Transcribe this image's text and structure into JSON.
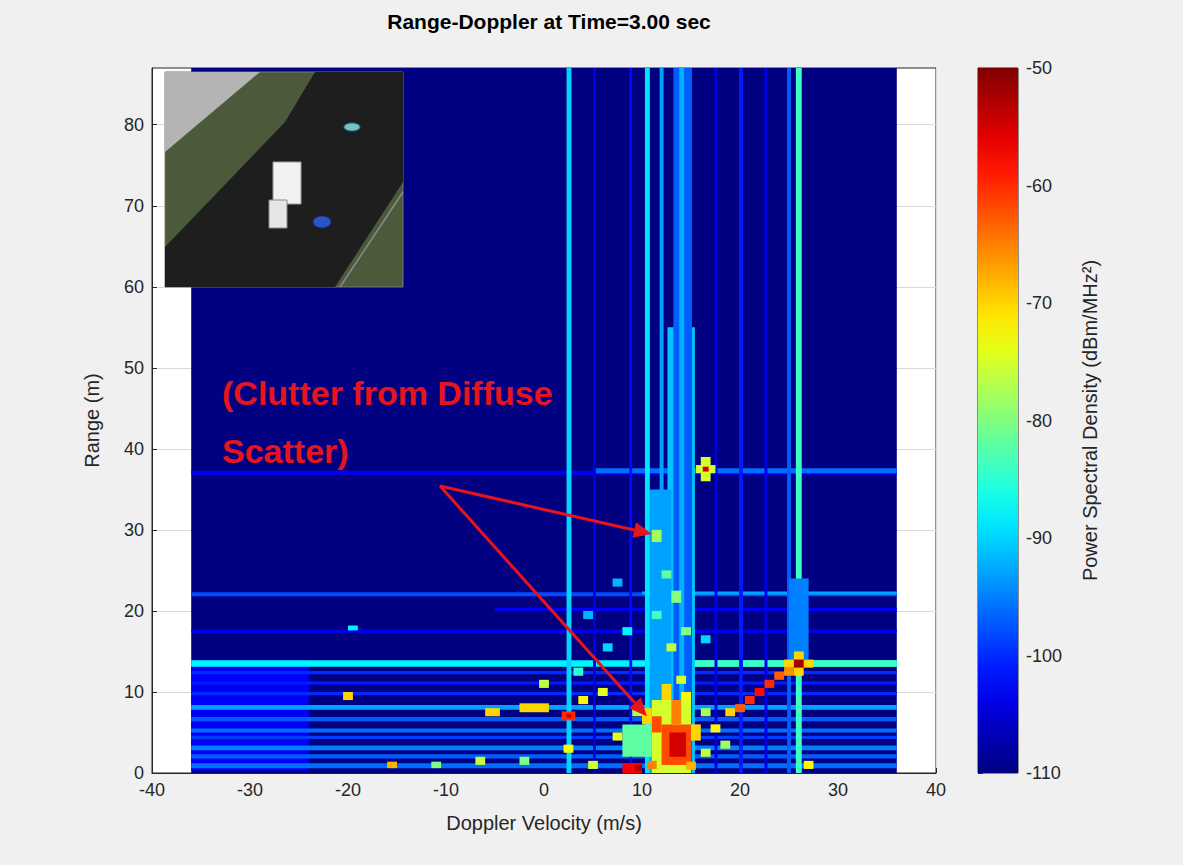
{
  "chart_data": {
    "type": "heatmap",
    "title": "Range-Doppler at Time=3.00 sec",
    "x_label": "Doppler Velocity (m/s)",
    "y_label": "Range (m)",
    "xlim": [
      -40,
      40
    ],
    "xticks": [
      -40,
      -30,
      -20,
      -10,
      0,
      10,
      20,
      30,
      40
    ],
    "ylim": [
      0,
      87
    ],
    "yticks": [
      0,
      10,
      20,
      30,
      40,
      50,
      60,
      70,
      80
    ],
    "grid": true,
    "color": "jet",
    "colorbar": {
      "label": "Power Spectral Density (dBm/MHz²)",
      "range": [
        -110,
        -50
      ],
      "ticks": [
        -110,
        -100,
        -90,
        -80,
        -70,
        -60,
        -50
      ]
    },
    "annotation": {
      "text": "(Clutter from Diffuse Scatter)",
      "points": [
        [
          11,
          29.5
        ],
        [
          10.5,
          7
        ]
      ]
    },
    "cells": [
      [
        -36,
        36,
        0,
        87,
        -110
      ],
      [
        -36,
        -24,
        0.3,
        13.9,
        -103
      ],
      [
        -36,
        36,
        0.6,
        1.2,
        -96
      ],
      [
        -36,
        36,
        1.8,
        2.3,
        -97
      ],
      [
        -36,
        36,
        2.8,
        3.4,
        -95
      ],
      [
        -36,
        36,
        4.2,
        4.6,
        -99
      ],
      [
        -36,
        36,
        5.0,
        5.5,
        -96
      ],
      [
        -36,
        36,
        6.4,
        6.9,
        -97
      ],
      [
        -36,
        36,
        7.8,
        8.4,
        -93
      ],
      [
        -36,
        36,
        9.6,
        10.0,
        -100
      ],
      [
        -36,
        36,
        10.9,
        11.3,
        -101
      ],
      [
        -36,
        36,
        12.2,
        12.6,
        -100
      ],
      [
        -36,
        36,
        13.1,
        13.9,
        -88
      ],
      [
        -36,
        36,
        17.3,
        17.7,
        -103
      ],
      [
        -36,
        36,
        21.8,
        22.3,
        -98
      ],
      [
        -36,
        36,
        36.8,
        37.3,
        -103
      ],
      [
        5,
        36,
        37,
        37.6,
        -96
      ],
      [
        10,
        36,
        22,
        22.4,
        -93
      ],
      [
        -5,
        36,
        20,
        20.4,
        -103
      ],
      [
        13,
        36,
        13.1,
        13.9,
        -84
      ],
      [
        12.6,
        15.4,
        0,
        55,
        -91
      ],
      [
        10.8,
        13,
        0,
        35,
        -93
      ],
      [
        2.3,
        2.8,
        0,
        87,
        -90
      ],
      [
        10.3,
        10.8,
        0,
        87,
        -89
      ],
      [
        11.8,
        12.2,
        0,
        87,
        -93
      ],
      [
        13.2,
        15.1,
        0,
        87,
        -97
      ],
      [
        13.8,
        14.3,
        0,
        87,
        -92
      ],
      [
        19.9,
        20.3,
        0,
        87,
        -101
      ],
      [
        24.8,
        25.2,
        0,
        87,
        -97
      ],
      [
        25.7,
        26.3,
        0,
        87,
        -84
      ],
      [
        8.7,
        9.0,
        0,
        87,
        -102
      ],
      [
        5.0,
        5.3,
        0,
        87,
        -104
      ],
      [
        17.4,
        17.7,
        0,
        87,
        -104
      ],
      [
        22.5,
        22.8,
        0,
        87,
        -104
      ],
      [
        25,
        27,
        14,
        24,
        -95
      ],
      [
        11,
        12,
        28.5,
        30,
        -78
      ],
      [
        12,
        13,
        24,
        25,
        -82
      ],
      [
        13,
        14,
        21,
        22.5,
        -80
      ],
      [
        11,
        12,
        19,
        20,
        -84
      ],
      [
        14,
        15,
        17,
        18,
        -80
      ],
      [
        12.5,
        13.5,
        15,
        16,
        -76
      ],
      [
        6,
        7,
        15,
        16,
        -90
      ],
      [
        4,
        5,
        19,
        20,
        -92
      ],
      [
        7,
        8,
        23,
        24,
        -92
      ],
      [
        8,
        9,
        17,
        18,
        -88
      ],
      [
        3,
        4,
        12,
        13,
        -85
      ],
      [
        16,
        17,
        16,
        17,
        -90
      ],
      [
        11,
        15,
        0,
        9,
        -75
      ],
      [
        12,
        15,
        1,
        6,
        -62
      ],
      [
        12.8,
        14.5,
        2,
        5,
        -55
      ],
      [
        13,
        14,
        6,
        9,
        -65
      ],
      [
        12,
        13,
        9,
        11,
        -70
      ],
      [
        11,
        12,
        5,
        7,
        -62
      ],
      [
        10,
        11,
        6,
        8,
        -70
      ],
      [
        14,
        15,
        9,
        10,
        -72
      ],
      [
        13.5,
        14.5,
        11,
        12,
        -75
      ],
      [
        8,
        11,
        2,
        6,
        -82
      ],
      [
        7,
        8,
        4,
        5,
        -74
      ],
      [
        9,
        10,
        7,
        8,
        -78
      ],
      [
        15,
        16,
        4,
        6,
        -70
      ],
      [
        16,
        17,
        7,
        8,
        -78
      ],
      [
        16,
        17,
        2,
        3,
        -76
      ],
      [
        8,
        10,
        0,
        1.2,
        -57
      ],
      [
        9.3,
        10,
        0.3,
        1,
        -52
      ],
      [
        10.5,
        11.5,
        0.5,
        1.5,
        -65
      ],
      [
        14.5,
        15.5,
        0.4,
        1.4,
        -68
      ],
      [
        1.8,
        3.2,
        6.5,
        7.6,
        -60
      ],
      [
        2.3,
        2.8,
        6.8,
        7.3,
        -55
      ],
      [
        -2.5,
        0.5,
        7.5,
        8.6,
        -70
      ],
      [
        -6,
        -4.5,
        7,
        8,
        -70
      ],
      [
        -0.5,
        0.5,
        10.5,
        11.5,
        -76
      ],
      [
        3.5,
        4.5,
        8.5,
        9.5,
        -72
      ],
      [
        5.5,
        6.5,
        9.5,
        10.5,
        -74
      ],
      [
        2,
        3,
        2.5,
        3.5,
        -73
      ],
      [
        4.5,
        5.5,
        0.5,
        1.5,
        -75
      ],
      [
        -20.5,
        -19.5,
        9,
        10,
        -70
      ],
      [
        -16,
        -15,
        0.6,
        1.4,
        -68
      ],
      [
        -11.5,
        -10.5,
        0.6,
        1.4,
        -80
      ],
      [
        -7,
        -6,
        1,
        2,
        -76
      ],
      [
        -20,
        -19,
        17.6,
        18.2,
        -88
      ],
      [
        -2.5,
        -1.5,
        1,
        2,
        -80
      ],
      [
        26.5,
        27.5,
        0.5,
        1.5,
        -72
      ],
      [
        18.5,
        19.5,
        7,
        8,
        -70
      ],
      [
        19.5,
        20.5,
        7.5,
        8.5,
        -63
      ],
      [
        20.5,
        21.5,
        8.5,
        9.5,
        -60
      ],
      [
        21.5,
        22.5,
        9.5,
        10.5,
        -58
      ],
      [
        22.5,
        23.5,
        10.5,
        11.5,
        -60
      ],
      [
        23.5,
        24.5,
        11.5,
        12.5,
        -63
      ],
      [
        24.5,
        25.5,
        12,
        13,
        -66
      ],
      [
        17,
        18,
        5,
        6,
        -72
      ],
      [
        18,
        19,
        3,
        4,
        -78
      ],
      [
        24.5,
        27.5,
        13,
        14,
        -70
      ],
      [
        25.5,
        26.5,
        12,
        15,
        -70
      ],
      [
        25.5,
        26.5,
        13,
        14,
        -52
      ],
      [
        15.5,
        17.5,
        37,
        38,
        -75
      ],
      [
        16,
        17,
        36,
        39,
        -75
      ],
      [
        16.2,
        16.8,
        37.2,
        37.8,
        -55
      ]
    ]
  }
}
